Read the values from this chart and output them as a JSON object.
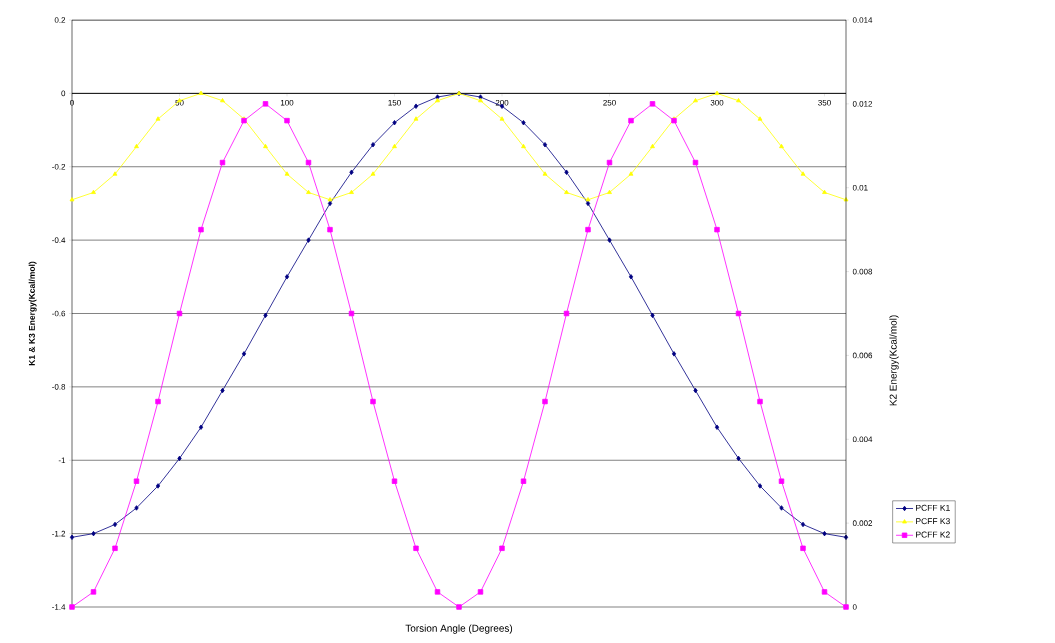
{
  "chart_data": {
    "type": "line",
    "xlabel": "Torsion Angle (Degrees)",
    "ylabel": "K1 & K3 Energy(Kcal/mol)",
    "y2label": "K2 Energy(Kcal/mol)",
    "x": [
      0,
      10,
      20,
      30,
      40,
      50,
      60,
      70,
      80,
      90,
      100,
      110,
      120,
      130,
      140,
      150,
      160,
      170,
      180,
      190,
      200,
      210,
      220,
      230,
      240,
      250,
      260,
      270,
      280,
      290,
      300,
      310,
      320,
      330,
      340,
      350,
      360
    ],
    "series": [
      {
        "name": "PCFF K1",
        "color": "#000080",
        "marker": "diamond",
        "values": [
          -1.21,
          -1.2,
          -1.175,
          -1.13,
          -1.07,
          -0.995,
          -0.91,
          -0.81,
          -0.71,
          -0.605,
          -0.5,
          -0.4,
          -0.3,
          -0.215,
          -0.14,
          -0.08,
          -0.035,
          -0.01,
          0,
          -0.01,
          -0.035,
          -0.08,
          -0.14,
          -0.215,
          -0.3,
          -0.4,
          -0.5,
          -0.605,
          -0.71,
          -0.81,
          -0.91,
          -0.995,
          -1.07,
          -1.13,
          -1.175,
          -1.2,
          -1.21
        ]
      },
      {
        "name": "PCFF K3",
        "color": "#ffff00",
        "marker": "triangle",
        "values": [
          -0.29,
          -0.27,
          -0.22,
          -0.145,
          -0.07,
          -0.02,
          0,
          -0.02,
          -0.07,
          -0.145,
          -0.22,
          -0.27,
          -0.29,
          -0.27,
          -0.22,
          -0.145,
          -0.07,
          -0.02,
          0,
          -0.02,
          -0.07,
          -0.145,
          -0.22,
          -0.27,
          -0.29,
          -0.27,
          -0.22,
          -0.145,
          -0.07,
          -0.02,
          0,
          -0.02,
          -0.07,
          -0.145,
          -0.22,
          -0.27,
          -0.29
        ]
      },
      {
        "name": "PCFF K2",
        "color": "#ff00ff",
        "marker": "square",
        "axis": "y2",
        "values": [
          0,
          0.00036,
          0.0014,
          0.003,
          0.0049,
          0.007,
          0.009,
          0.0106,
          0.0116,
          0.012,
          0.0116,
          0.0106,
          0.009,
          0.007,
          0.0049,
          0.003,
          0.0014,
          0.00036,
          0,
          0.00036,
          0.0014,
          0.003,
          0.0049,
          0.007,
          0.009,
          0.0106,
          0.0116,
          0.012,
          0.0116,
          0.0106,
          0.009,
          0.007,
          0.0049,
          0.003,
          0.0014,
          0.00036,
          0
        ]
      }
    ],
    "xlim": [
      0,
      360
    ],
    "xticks": [
      0,
      50,
      100,
      150,
      200,
      250,
      300,
      350
    ],
    "ylim": [
      -1.4,
      0.2
    ],
    "yticks": [
      -1.4,
      -1.2,
      -1,
      -0.8,
      -0.6,
      -0.4,
      -0.2,
      0,
      0.2
    ],
    "y2lim": [
      0,
      0.014
    ],
    "y2ticks": [
      0,
      0.002,
      0.004,
      0.006,
      0.008,
      0.01,
      0.012,
      0.014
    ],
    "grid": "y",
    "legend": "right",
    "line_style": "solid"
  }
}
